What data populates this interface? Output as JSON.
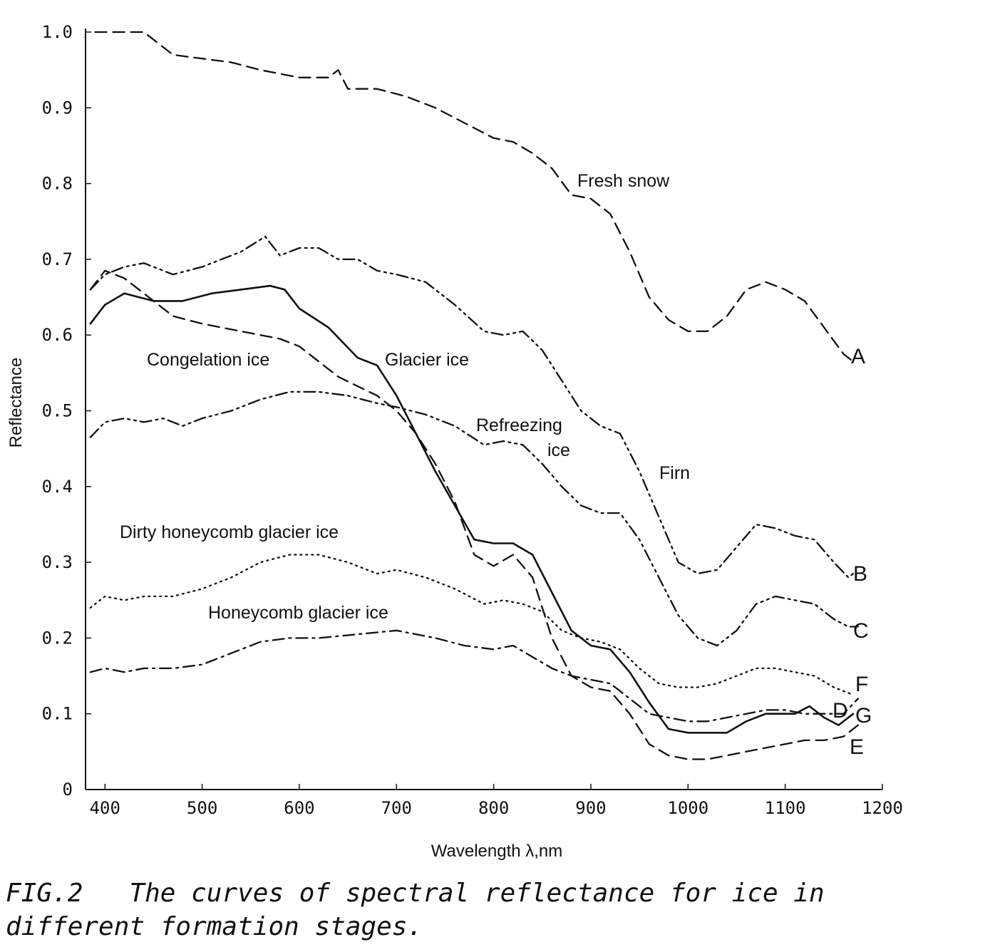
{
  "caption": {
    "line1": "FIG.2   The curves of spectral reflectance for ice in",
    "line2": "different formation stages."
  },
  "chart_data": {
    "type": "line",
    "xlabel": "Wavelength λ,nm",
    "ylabel": "Reflectance",
    "xlim": [
      380,
      1200
    ],
    "ylim": [
      0,
      1.0
    ],
    "x_ticks": [
      "400",
      "500",
      "600",
      "700",
      "800",
      "900",
      "1000",
      "1100",
      "1200"
    ],
    "y_ticks": [
      "0",
      "0.1",
      "0.2",
      "0.3",
      "0.4",
      "0.5",
      "0.6",
      "0.7",
      "0.8",
      "0.9",
      "1.0"
    ],
    "grid": false,
    "series": [
      {
        "name": "Fresh snow",
        "letter": "A",
        "style": "dashed",
        "x": [
          390,
          420,
          440,
          470,
          500,
          530,
          560,
          600,
          630,
          640,
          650,
          680,
          710,
          740,
          770,
          800,
          820,
          840,
          860,
          880,
          900,
          920,
          940,
          960,
          980,
          1000,
          1020,
          1040,
          1060,
          1080,
          1100,
          1120,
          1140,
          1160,
          1170
        ],
        "y": [
          1.0,
          1.0,
          1.0,
          0.97,
          0.965,
          0.96,
          0.95,
          0.94,
          0.94,
          0.95,
          0.925,
          0.925,
          0.915,
          0.9,
          0.88,
          0.86,
          0.855,
          0.84,
          0.82,
          0.785,
          0.78,
          0.76,
          0.71,
          0.65,
          0.62,
          0.605,
          0.605,
          0.625,
          0.66,
          0.67,
          0.66,
          0.645,
          0.61,
          0.575,
          0.565
        ]
      },
      {
        "name": "Firn",
        "letter": "B",
        "style": "dash-dot-dot",
        "x": [
          385,
          400,
          420,
          440,
          470,
          500,
          540,
          565,
          580,
          600,
          620,
          640,
          660,
          680,
          700,
          730,
          760,
          790,
          810,
          830,
          850,
          870,
          890,
          910,
          930,
          950,
          970,
          990,
          1010,
          1030,
          1050,
          1070,
          1090,
          1110,
          1130,
          1150,
          1165,
          1170
        ],
        "y": [
          0.66,
          0.68,
          0.69,
          0.695,
          0.68,
          0.69,
          0.71,
          0.73,
          0.705,
          0.715,
          0.715,
          0.7,
          0.7,
          0.685,
          0.68,
          0.67,
          0.64,
          0.605,
          0.6,
          0.605,
          0.58,
          0.54,
          0.5,
          0.48,
          0.47,
          0.42,
          0.36,
          0.3,
          0.285,
          0.29,
          0.32,
          0.35,
          0.345,
          0.335,
          0.33,
          0.3,
          0.28,
          0.285
        ]
      },
      {
        "name": "Refreezing ice",
        "letter": "C",
        "style": "dash-dot-dot",
        "x": [
          385,
          400,
          420,
          440,
          460,
          480,
          500,
          530,
          560,
          590,
          620,
          650,
          680,
          700,
          730,
          760,
          790,
          810,
          830,
          850,
          870,
          890,
          910,
          930,
          950,
          970,
          990,
          1010,
          1030,
          1050,
          1070,
          1090,
          1110,
          1130,
          1150,
          1165,
          1175
        ],
        "y": [
          0.465,
          0.485,
          0.49,
          0.485,
          0.49,
          0.48,
          0.49,
          0.5,
          0.515,
          0.525,
          0.525,
          0.52,
          0.51,
          0.505,
          0.495,
          0.48,
          0.455,
          0.46,
          0.455,
          0.43,
          0.4,
          0.375,
          0.365,
          0.365,
          0.33,
          0.28,
          0.23,
          0.2,
          0.19,
          0.21,
          0.245,
          0.255,
          0.25,
          0.245,
          0.225,
          0.215,
          0.215
        ]
      },
      {
        "name": "Glacier ice",
        "letter": "D",
        "style": "solid",
        "x": [
          385,
          400,
          420,
          450,
          480,
          510,
          540,
          570,
          585,
          600,
          630,
          660,
          680,
          700,
          720,
          740,
          760,
          780,
          800,
          820,
          840,
          860,
          880,
          900,
          920,
          940,
          960,
          980,
          1000,
          1020,
          1040,
          1060,
          1080,
          1100,
          1110,
          1125,
          1140,
          1155,
          1170
        ],
        "y": [
          0.615,
          0.64,
          0.655,
          0.645,
          0.645,
          0.655,
          0.66,
          0.665,
          0.66,
          0.635,
          0.61,
          0.57,
          0.56,
          0.52,
          0.47,
          0.42,
          0.375,
          0.33,
          0.325,
          0.325,
          0.31,
          0.26,
          0.21,
          0.19,
          0.185,
          0.155,
          0.115,
          0.08,
          0.075,
          0.075,
          0.075,
          0.09,
          0.1,
          0.1,
          0.1,
          0.11,
          0.095,
          0.085,
          0.1
        ]
      },
      {
        "name": "Congelation ice",
        "letter": "E",
        "style": "dashed",
        "x": [
          385,
          400,
          420,
          440,
          470,
          500,
          540,
          580,
          600,
          640,
          680,
          700,
          720,
          740,
          760,
          780,
          800,
          820,
          840,
          860,
          880,
          900,
          920,
          940,
          960,
          980,
          1000,
          1020,
          1040,
          1060,
          1080,
          1100,
          1120,
          1140,
          1160,
          1175
        ],
        "y": [
          0.66,
          0.685,
          0.675,
          0.655,
          0.625,
          0.615,
          0.605,
          0.595,
          0.585,
          0.545,
          0.52,
          0.5,
          0.47,
          0.43,
          0.38,
          0.31,
          0.295,
          0.31,
          0.28,
          0.2,
          0.15,
          0.135,
          0.13,
          0.1,
          0.06,
          0.045,
          0.04,
          0.04,
          0.045,
          0.05,
          0.055,
          0.06,
          0.065,
          0.065,
          0.07,
          0.085
        ]
      },
      {
        "name": "Dirty honeycomb glacier ice",
        "letter": "F",
        "style": "dotted",
        "x": [
          385,
          400,
          420,
          440,
          470,
          500,
          530,
          560,
          590,
          620,
          650,
          680,
          700,
          730,
          760,
          790,
          810,
          830,
          850,
          870,
          890,
          910,
          930,
          950,
          970,
          990,
          1010,
          1030,
          1050,
          1070,
          1090,
          1110,
          1130,
          1150,
          1170
        ],
        "y": [
          0.24,
          0.255,
          0.25,
          0.255,
          0.255,
          0.265,
          0.28,
          0.3,
          0.31,
          0.31,
          0.3,
          0.285,
          0.29,
          0.28,
          0.265,
          0.245,
          0.25,
          0.245,
          0.235,
          0.21,
          0.2,
          0.195,
          0.185,
          0.16,
          0.14,
          0.135,
          0.135,
          0.14,
          0.15,
          0.16,
          0.16,
          0.155,
          0.15,
          0.135,
          0.125
        ]
      },
      {
        "name": "Honeycomb glacier ice",
        "letter": "G",
        "style": "dash-dot",
        "x": [
          385,
          400,
          420,
          440,
          470,
          500,
          530,
          560,
          590,
          620,
          660,
          700,
          740,
          770,
          800,
          820,
          840,
          860,
          880,
          900,
          920,
          940,
          960,
          980,
          1000,
          1020,
          1040,
          1060,
          1080,
          1100,
          1120,
          1140,
          1160,
          1175
        ],
        "y": [
          0.155,
          0.16,
          0.155,
          0.16,
          0.16,
          0.165,
          0.18,
          0.195,
          0.2,
          0.2,
          0.205,
          0.21,
          0.2,
          0.19,
          0.185,
          0.19,
          0.175,
          0.16,
          0.15,
          0.145,
          0.14,
          0.12,
          0.1,
          0.095,
          0.09,
          0.09,
          0.095,
          0.1,
          0.105,
          0.105,
          0.1,
          0.1,
          0.1,
          0.12
        ]
      }
    ]
  }
}
